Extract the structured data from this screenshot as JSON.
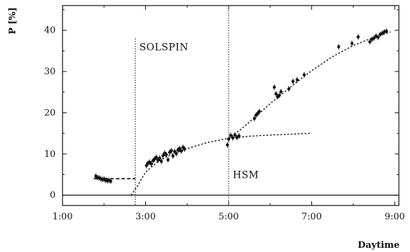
{
  "chart_data": {
    "type": "scatter",
    "title": "",
    "xlabel": "Daytime",
    "ylabel": "P [%]",
    "x_unit": "hours",
    "xlim": [
      1.0,
      9.1
    ],
    "ylim": [
      -2.5,
      46
    ],
    "x_ticks": [
      {
        "value": 1,
        "label": "1:00"
      },
      {
        "value": 3,
        "label": "3:00"
      },
      {
        "value": 5,
        "label": "5:00"
      },
      {
        "value": 7,
        "label": "7:00"
      },
      {
        "value": 9,
        "label": "9:00"
      }
    ],
    "y_ticks": [
      {
        "value": 0,
        "label": "0"
      },
      {
        "value": 10,
        "label": "10"
      },
      {
        "value": 20,
        "label": "20"
      },
      {
        "value": 30,
        "label": "30"
      },
      {
        "value": 40,
        "label": "40"
      }
    ],
    "grid": false,
    "baseline_y": 0,
    "points": [
      {
        "x": 1.8,
        "y": 4.6
      },
      {
        "x": 1.84,
        "y": 4.3
      },
      {
        "x": 1.88,
        "y": 4.2
      },
      {
        "x": 1.92,
        "y": 4.0
      },
      {
        "x": 1.96,
        "y": 3.8
      },
      {
        "x": 2.0,
        "y": 3.9
      },
      {
        "x": 2.04,
        "y": 3.6
      },
      {
        "x": 2.08,
        "y": 3.5
      },
      {
        "x": 2.12,
        "y": 3.6
      },
      {
        "x": 2.16,
        "y": 3.4
      },
      {
        "x": 3.02,
        "y": 7.2
      },
      {
        "x": 3.06,
        "y": 7.8
      },
      {
        "x": 3.1,
        "y": 8.0
      },
      {
        "x": 3.14,
        "y": 7.6
      },
      {
        "x": 3.18,
        "y": 8.4
      },
      {
        "x": 3.22,
        "y": 8.8
      },
      {
        "x": 3.26,
        "y": 9.2
      },
      {
        "x": 3.3,
        "y": 8.5
      },
      {
        "x": 3.34,
        "y": 9.0
      },
      {
        "x": 3.38,
        "y": 8.2
      },
      {
        "x": 3.42,
        "y": 9.6
      },
      {
        "x": 3.46,
        "y": 10.2
      },
      {
        "x": 3.5,
        "y": 9.8
      },
      {
        "x": 3.54,
        "y": 8.6
      },
      {
        "x": 3.58,
        "y": 10.4
      },
      {
        "x": 3.62,
        "y": 10.8
      },
      {
        "x": 3.66,
        "y": 9.5
      },
      {
        "x": 3.7,
        "y": 10.6
      },
      {
        "x": 3.74,
        "y": 10.1
      },
      {
        "x": 3.78,
        "y": 11.0
      },
      {
        "x": 3.82,
        "y": 11.3
      },
      {
        "x": 3.86,
        "y": 10.7
      },
      {
        "x": 3.9,
        "y": 11.6
      },
      {
        "x": 3.94,
        "y": 11.2
      },
      {
        "x": 4.97,
        "y": 12.2
      },
      {
        "x": 5.0,
        "y": 13.6
      },
      {
        "x": 5.05,
        "y": 14.5
      },
      {
        "x": 5.1,
        "y": 13.9
      },
      {
        "x": 5.15,
        "y": 14.6
      },
      {
        "x": 5.2,
        "y": 14.0
      },
      {
        "x": 5.25,
        "y": 14.4
      },
      {
        "x": 5.62,
        "y": 18.6
      },
      {
        "x": 5.66,
        "y": 19.4
      },
      {
        "x": 5.7,
        "y": 19.8
      },
      {
        "x": 5.74,
        "y": 20.3
      },
      {
        "x": 6.1,
        "y": 26.2
      },
      {
        "x": 6.14,
        "y": 24.6
      },
      {
        "x": 6.18,
        "y": 23.9
      },
      {
        "x": 6.22,
        "y": 24.2
      },
      {
        "x": 6.26,
        "y": 25.1
      },
      {
        "x": 6.45,
        "y": 25.8
      },
      {
        "x": 6.55,
        "y": 27.6
      },
      {
        "x": 6.65,
        "y": 28.0
      },
      {
        "x": 6.82,
        "y": 29.2
      },
      {
        "x": 7.65,
        "y": 36.0
      },
      {
        "x": 7.97,
        "y": 36.8
      },
      {
        "x": 8.12,
        "y": 38.4
      },
      {
        "x": 8.4,
        "y": 37.2
      },
      {
        "x": 8.45,
        "y": 37.8
      },
      {
        "x": 8.5,
        "y": 38.1
      },
      {
        "x": 8.55,
        "y": 38.6
      },
      {
        "x": 8.6,
        "y": 38.3
      },
      {
        "x": 8.65,
        "y": 39.0
      },
      {
        "x": 8.7,
        "y": 39.3
      },
      {
        "x": 8.75,
        "y": 39.6
      },
      {
        "x": 8.8,
        "y": 39.8
      }
    ],
    "fit_lines": [
      {
        "style": "dashed",
        "points": [
          [
            1.75,
            4.0
          ],
          [
            2.75,
            4.0
          ]
        ]
      },
      {
        "style": "dotted",
        "points": [
          [
            2.65,
            0.0
          ],
          [
            2.8,
            2.2
          ],
          [
            3.0,
            5.6
          ],
          [
            3.3,
            8.2
          ],
          [
            3.6,
            9.8
          ],
          [
            4.0,
            11.3
          ],
          [
            4.5,
            12.8
          ],
          [
            5.0,
            13.8
          ],
          [
            5.5,
            14.3
          ],
          [
            6.0,
            14.6
          ],
          [
            6.5,
            14.8
          ],
          [
            7.0,
            15.0
          ]
        ]
      },
      {
        "style": "dotted",
        "points": [
          [
            5.0,
            13.8
          ],
          [
            5.3,
            16.0
          ],
          [
            5.6,
            18.6
          ],
          [
            6.0,
            22.2
          ],
          [
            6.5,
            26.3
          ],
          [
            7.0,
            30.2
          ],
          [
            7.5,
            33.6
          ],
          [
            8.0,
            36.3
          ],
          [
            8.5,
            38.3
          ],
          [
            8.9,
            39.6
          ]
        ]
      }
    ],
    "vertical_markers": [
      {
        "x": 2.75,
        "y_top": 38,
        "label": "SOLSPIN",
        "label_y": 36
      },
      {
        "x": 5.0,
        "y_top": 46,
        "label": "HSM",
        "label_y": 5
      }
    ]
  }
}
